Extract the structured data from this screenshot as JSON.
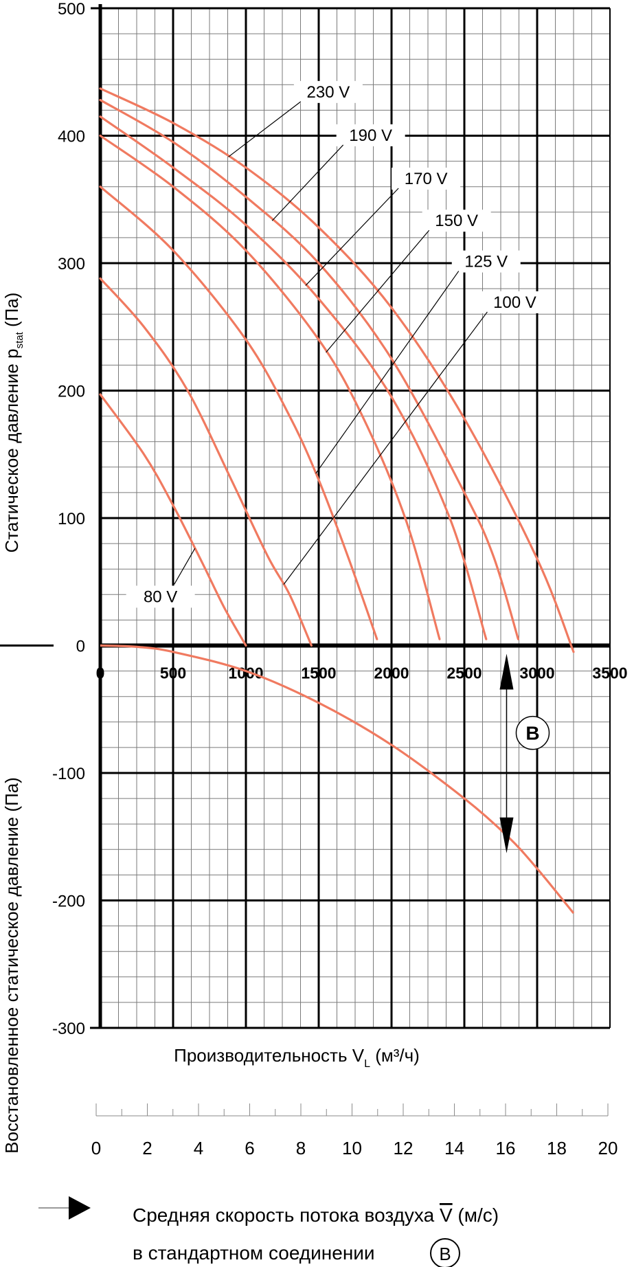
{
  "chart_data": {
    "type": "line",
    "xlabel_main": "Производительность V",
    "xlabel_sub": "L",
    "xlabel_unit": " (м³/ч)",
    "ylabel_upper_main": "Статическое давление p",
    "ylabel_upper_sub": "stat",
    "ylabel_upper_unit": " (Па)",
    "ylabel_lower": "Восстановленное статическое давление (Па)",
    "xlim": [
      0,
      3500
    ],
    "ylim": [
      -300,
      500
    ],
    "x_ticks": [
      "0",
      "500",
      "1000",
      "1500",
      "2000",
      "2500",
      "3000",
      "3500"
    ],
    "y_ticks": [
      "500",
      "400",
      "300",
      "200",
      "100",
      "0",
      "-100",
      "-200",
      "-300"
    ],
    "grid": true,
    "series": [
      {
        "name": "230 V",
        "x": [
          0,
          500,
          1000,
          1500,
          2000,
          2500,
          3000,
          3250
        ],
        "y": [
          437,
          410,
          375,
          328,
          265,
          178,
          68,
          -5
        ]
      },
      {
        "name": "190 V",
        "x": [
          0,
          500,
          1000,
          1500,
          2000,
          2500,
          2700,
          2870
        ],
        "y": [
          428,
          395,
          352,
          300,
          225,
          120,
          70,
          5
        ]
      },
      {
        "name": "170 V",
        "x": [
          0,
          500,
          1000,
          1500,
          2000,
          2400,
          2650
        ],
        "y": [
          415,
          375,
          330,
          272,
          195,
          100,
          5
        ]
      },
      {
        "name": "150 V",
        "x": [
          0,
          500,
          1000,
          1500,
          1800,
          2100,
          2330
        ],
        "y": [
          400,
          360,
          310,
          240,
          180,
          98,
          5
        ]
      },
      {
        "name": "125 V",
        "x": [
          0,
          500,
          1000,
          1300,
          1500,
          1700,
          1900
        ],
        "y": [
          360,
          310,
          240,
          180,
          130,
          70,
          5
        ]
      },
      {
        "name": "100 V",
        "x": [
          0,
          300,
          600,
          900,
          1150,
          1300,
          1450
        ],
        "y": [
          288,
          250,
          200,
          130,
          70,
          40,
          0
        ]
      },
      {
        "name": "80 V",
        "x": [
          0,
          300,
          500,
          700,
          850,
          1000
        ],
        "y": [
          197,
          150,
          110,
          65,
          30,
          0
        ]
      }
    ],
    "recovery_curve": {
      "x": [
        0,
        250,
        500,
        1000,
        1500,
        2000,
        2500,
        2800,
        3000,
        3250
      ],
      "y": [
        0,
        -1,
        -5,
        -20,
        -45,
        -78,
        -120,
        -150,
        -175,
        -210
      ]
    },
    "velocity_axis": {
      "ticks": [
        "0",
        "2",
        "4",
        "6",
        "8",
        "10",
        "12",
        "14",
        "16",
        "18",
        "20"
      ],
      "max": 20
    },
    "marker": {
      "label": "B",
      "x": 2790,
      "y_top": 0,
      "y_bottom": -150
    }
  },
  "legend": {
    "line1": "Средняя скорость потока воздуха V (м/с)",
    "line1_main": "Средняя скорость потока воздуха ",
    "line1_var": "V",
    "line1_unit": " (м/с)",
    "line2": "в стандартном соединении",
    "badge": "B"
  },
  "colors": {
    "curve": "#f07a60",
    "grid_major": "#000000",
    "grid_minor": "#7a7a7a"
  }
}
